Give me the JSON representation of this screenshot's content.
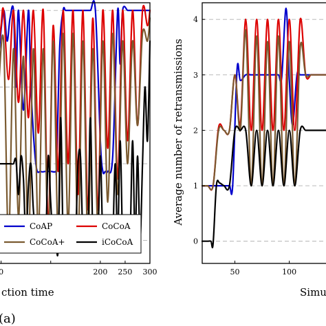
{
  "chart_data": [
    {
      "type": "line",
      "panel": "left",
      "title": "",
      "xlabel": "ction time",
      "ylabel": "",
      "xlim": [
        -5,
        300
      ],
      "ylim": [
        0.7,
        4.1
      ],
      "xticks": [
        {
          "v": 0,
          "label": "0"
        },
        {
          "v": 100,
          "label": ""
        },
        {
          "v": 200,
          "label": "200"
        },
        {
          "v": 250,
          "label": "250"
        },
        {
          "v": 300,
          "label": "300"
        }
      ],
      "gridlines_y": [
        1,
        2,
        3,
        4
      ],
      "grid": "dashed horizontal",
      "legend": {
        "placement": "bottom",
        "entries": [
          {
            "name": "CoAP",
            "color": "#0000cc"
          },
          {
            "name": "CoCoA",
            "color": "#dd0000"
          },
          {
            "name": "CoCoA+",
            "color": "#7a5a30"
          },
          {
            "name": "iCoCoA",
            "color": "#000000"
          }
        ]
      },
      "series": [
        {
          "name": "CoAP",
          "color": "#0000cc",
          "x": [
            -5,
            5,
            12,
            18,
            25,
            30,
            35,
            45,
            55,
            60,
            70,
            80,
            90,
            100,
            110,
            112,
            118,
            125,
            130,
            140,
            150,
            160,
            170,
            180,
            190,
            200,
            205,
            210,
            215,
            225,
            235,
            240,
            245,
            255,
            260,
            270,
            280,
            290,
            300
          ],
          "y": [
            3.4,
            4.0,
            3.6,
            3.9,
            4.0,
            3.0,
            4.0,
            2.7,
            4.0,
            3.0,
            2.0,
            1.9,
            1.9,
            1.9,
            1.9,
            2.0,
            3.5,
            4.0,
            4.0,
            4.0,
            4.0,
            4.0,
            4.0,
            4.0,
            4.0,
            2.3,
            1.9,
            1.9,
            1.9,
            2.1,
            4.0,
            3.3,
            4.0,
            4.0,
            4.0,
            4.0,
            4.0,
            4.0,
            4.0
          ]
        },
        {
          "name": "CoCoA",
          "color": "#dd0000",
          "x": [
            -5,
            0,
            5,
            15,
            25,
            35,
            45,
            55,
            65,
            75,
            85,
            95,
            105,
            115,
            125,
            135,
            145,
            155,
            165,
            175,
            185,
            195,
            205,
            215,
            225,
            235,
            245,
            255,
            265,
            275,
            285,
            295,
            300
          ],
          "y": [
            3.5,
            3.8,
            4.0,
            3.1,
            4.0,
            2.8,
            4.0,
            2.6,
            4.0,
            2.4,
            4.0,
            1.2,
            3.8,
            1.9,
            4.0,
            2.0,
            4.0,
            1.6,
            4.0,
            1.4,
            3.9,
            1.4,
            4.0,
            2.2,
            4.0,
            1.8,
            4.0,
            2.3,
            4.0,
            2.5,
            4.0,
            3.8,
            4.0
          ]
        },
        {
          "name": "CoCoA+",
          "color": "#7a5a30",
          "x": [
            -5,
            5,
            15,
            25,
            35,
            45,
            55,
            65,
            75,
            85,
            95,
            105,
            115,
            125,
            135,
            145,
            155,
            165,
            175,
            185,
            195,
            205,
            215,
            225,
            235,
            245,
            255,
            265,
            275,
            285,
            295,
            300
          ],
          "y": [
            3.0,
            3.6,
            1.0,
            3.5,
            1.3,
            3.4,
            0.9,
            3.5,
            1.1,
            3.5,
            1.0,
            3.6,
            1.1,
            3.7,
            1.2,
            3.7,
            1.0,
            3.6,
            1.0,
            3.5,
            1.2,
            3.6,
            1.5,
            3.7,
            1.6,
            3.6,
            2.0,
            3.6,
            2.5,
            3.7,
            3.6,
            3.9
          ]
        },
        {
          "name": "iCoCoA",
          "color": "#000000",
          "x": [
            -5,
            0,
            5,
            10,
            15,
            20,
            25,
            30,
            35,
            40,
            45,
            50,
            55,
            60,
            65,
            70,
            75,
            80,
            85,
            90,
            95,
            100,
            105,
            110,
            115,
            120,
            125,
            130,
            135,
            140,
            145,
            150,
            155,
            160,
            165,
            170,
            175,
            180,
            185,
            190,
            195,
            200,
            205,
            210,
            215,
            220,
            225,
            230,
            235,
            240,
            245,
            250,
            255,
            260,
            265,
            270,
            275,
            280,
            285,
            290,
            295,
            300
          ],
          "y": [
            2.0,
            2.0,
            2.0,
            2.0,
            2.0,
            2.0,
            2.0,
            2.05,
            1.6,
            2.1,
            1.8,
            1.0,
            1.7,
            2.0,
            1.4,
            1.1,
            1.0,
            1.0,
            1.1,
            1.0,
            2.1,
            1.5,
            1.0,
            1.0,
            0.9,
            2.6,
            1.0,
            1.0,
            0.95,
            1.0,
            1.0,
            1.0,
            2.0,
            2.1,
            1.0,
            1.0,
            1.0,
            2.6,
            1.0,
            1.0,
            1.0,
            2.1,
            1.0,
            1.0,
            1.0,
            1.0,
            1.0,
            2.0,
            1.0,
            2.3,
            1.0,
            1.2,
            1.0,
            1.0,
            2.3,
            1.0,
            2.1,
            1.0,
            2.0,
            3.0,
            2.3,
            3.6
          ]
        }
      ]
    },
    {
      "type": "line",
      "panel": "right",
      "title": "",
      "xlabel": "Simu",
      "ylabel": "Average number of retransmissions",
      "xlim": [
        20,
        140
      ],
      "ylim": [
        -0.4,
        4.3
      ],
      "xticks": [
        {
          "v": 50,
          "label": "50"
        },
        {
          "v": 100,
          "label": "100"
        }
      ],
      "yticks": [
        {
          "v": 0,
          "label": "0"
        },
        {
          "v": 1,
          "label": "1"
        },
        {
          "v": 2,
          "label": "2"
        },
        {
          "v": 3,
          "label": "3"
        },
        {
          "v": 4,
          "label": "4"
        }
      ],
      "gridlines_y": [
        0,
        1,
        2,
        3,
        4
      ],
      "grid": "dashed horizontal",
      "series": [
        {
          "name": "CoAP",
          "color": "#0000cc",
          "x": [
            20,
            25,
            30,
            35,
            40,
            45,
            48,
            52,
            55,
            60,
            65,
            70,
            75,
            80,
            85,
            90,
            93,
            97,
            100,
            103,
            107,
            110,
            115,
            120,
            125,
            130,
            135,
            140
          ],
          "y": [
            1.0,
            1.0,
            1.0,
            1.0,
            1.0,
            1.0,
            1.0,
            3.1,
            2.9,
            3.0,
            3.0,
            3.0,
            3.0,
            3.0,
            3.0,
            3.0,
            2.95,
            4.2,
            2.9,
            2.1,
            3.0,
            3.0,
            3.0,
            3.0,
            3.0,
            3.0,
            3.0,
            3.0
          ]
        },
        {
          "name": "CoCoA",
          "color": "#dd0000",
          "x": [
            20,
            25,
            30,
            35,
            40,
            45,
            50,
            55,
            60,
            65,
            70,
            75,
            80,
            85,
            90,
            95,
            100,
            105,
            110,
            115,
            120,
            125,
            130,
            135,
            140
          ],
          "y": [
            1.0,
            1.0,
            1.0,
            2.05,
            2.0,
            2.0,
            3.0,
            2.1,
            4.0,
            2.0,
            4.0,
            2.0,
            4.0,
            2.0,
            4.0,
            2.0,
            4.0,
            2.0,
            4.0,
            3.0,
            3.0,
            3.0,
            3.0,
            3.0,
            3.0
          ]
        },
        {
          "name": "CoCoA+",
          "color": "#7a5a30",
          "x": [
            20,
            25,
            30,
            35,
            40,
            45,
            50,
            55,
            60,
            65,
            70,
            75,
            80,
            85,
            90,
            95,
            100,
            105,
            110,
            115,
            120,
            125,
            130,
            135,
            140
          ],
          "y": [
            1.0,
            1.0,
            1.0,
            2.0,
            2.0,
            2.0,
            3.0,
            2.0,
            3.8,
            1.0,
            3.7,
            1.0,
            3.6,
            1.0,
            3.7,
            1.0,
            3.6,
            1.0,
            3.5,
            3.0,
            3.0,
            3.0,
            3.0,
            3.0,
            3.0
          ]
        },
        {
          "name": "iCoCoA",
          "color": "#000000",
          "x": [
            20,
            25,
            28,
            30,
            33,
            36,
            40,
            45,
            50,
            55,
            60,
            65,
            70,
            75,
            80,
            85,
            90,
            95,
            100,
            105,
            110,
            115,
            120,
            125,
            130,
            135,
            140
          ],
          "y": [
            0.0,
            0.0,
            0.0,
            -0.05,
            1.0,
            1.05,
            1.0,
            1.0,
            2.0,
            2.0,
            2.0,
            1.0,
            2.0,
            1.0,
            2.0,
            1.0,
            2.0,
            1.0,
            2.0,
            1.0,
            2.0,
            2.0,
            2.0,
            2.0,
            2.0,
            2.0,
            2.0
          ]
        }
      ]
    }
  ],
  "figure": {
    "panel_label": "(a)"
  }
}
